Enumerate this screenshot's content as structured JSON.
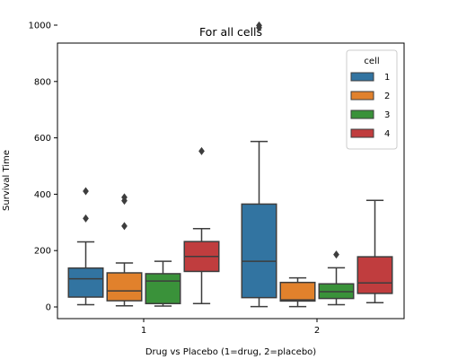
{
  "chart_data": {
    "type": "box",
    "title": "For all cells",
    "xlabel": "Drug vs Placebo (1=drug, 2=placebo)",
    "ylabel": "Survival Time",
    "categories": [
      "1",
      "2"
    ],
    "ylim": [
      -50,
      1050
    ],
    "yticks": [
      0,
      200,
      400,
      600,
      800,
      1000
    ],
    "legend": {
      "title": "cell",
      "position": "top-right"
    },
    "series": [
      {
        "name": "1",
        "color": "#3274a1",
        "boxes": [
          {
            "category": "1",
            "q1": 35,
            "median": 100,
            "q3": 138,
            "whisker_low": 8,
            "whisker_high": 231,
            "outliers": [
              314,
              411
            ]
          },
          {
            "category": "2",
            "q1": 33,
            "median": 162,
            "q3": 365,
            "whisker_low": 1,
            "whisker_high": 587,
            "outliers": [
              991,
              999
            ]
          }
        ]
      },
      {
        "name": "2",
        "color": "#e1812c",
        "boxes": [
          {
            "category": "1",
            "q1": 22,
            "median": 57,
            "q3": 121,
            "whisker_low": 4,
            "whisker_high": 156,
            "outliers": [
              287,
              377,
              389
            ]
          },
          {
            "category": "2",
            "q1": 21,
            "median": 25,
            "q3": 87,
            "whisker_low": 1,
            "whisker_high": 103,
            "outliers": []
          }
        ]
      },
      {
        "name": "3",
        "color": "#3a923a",
        "boxes": [
          {
            "category": "1",
            "q1": 12,
            "median": 92,
            "q3": 118,
            "whisker_low": 3,
            "whisker_high": 162,
            "outliers": []
          },
          {
            "category": "2",
            "q1": 30,
            "median": 54,
            "q3": 82,
            "whisker_low": 8,
            "whisker_high": 139,
            "outliers": [
              186
            ]
          }
        ]
      },
      {
        "name": "4",
        "color": "#c03d3e",
        "boxes": [
          {
            "category": "1",
            "q1": 126,
            "median": 179,
            "q3": 232,
            "whisker_low": 12,
            "whisker_high": 278,
            "outliers": [
              553
            ]
          },
          {
            "category": "2",
            "q1": 48,
            "median": 85,
            "q3": 178,
            "whisker_low": 15,
            "whisker_high": 378,
            "outliers": []
          }
        ]
      }
    ]
  }
}
